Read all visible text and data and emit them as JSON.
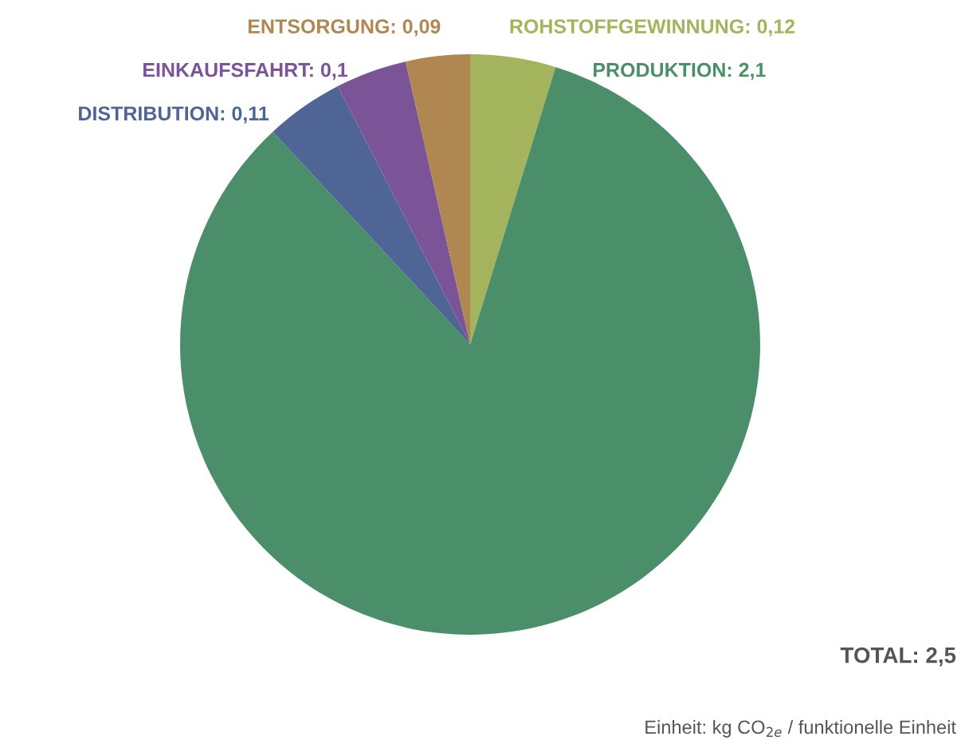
{
  "chart_data": {
    "type": "pie",
    "categories": [
      "ROHSTOFFGEWINNUNG",
      "PRODUKTION",
      "DISTRIBUTION",
      "EINKAUFSFAHRT",
      "ENTSORGUNG"
    ],
    "values": [
      0.12,
      2.1,
      0.11,
      0.1,
      0.09
    ],
    "value_labels": [
      "0,12",
      "2,1",
      "0,11",
      "0,1",
      "0,09"
    ],
    "colors": [
      "#a3b45c",
      "#4a8f6a",
      "#4e6595",
      "#7b5397",
      "#b08750"
    ],
    "annotations": [
      "TOTAL: 2,5",
      "Einheit: kg CO$_{2e}$ / funktionelle Einheit"
    ]
  }
}
